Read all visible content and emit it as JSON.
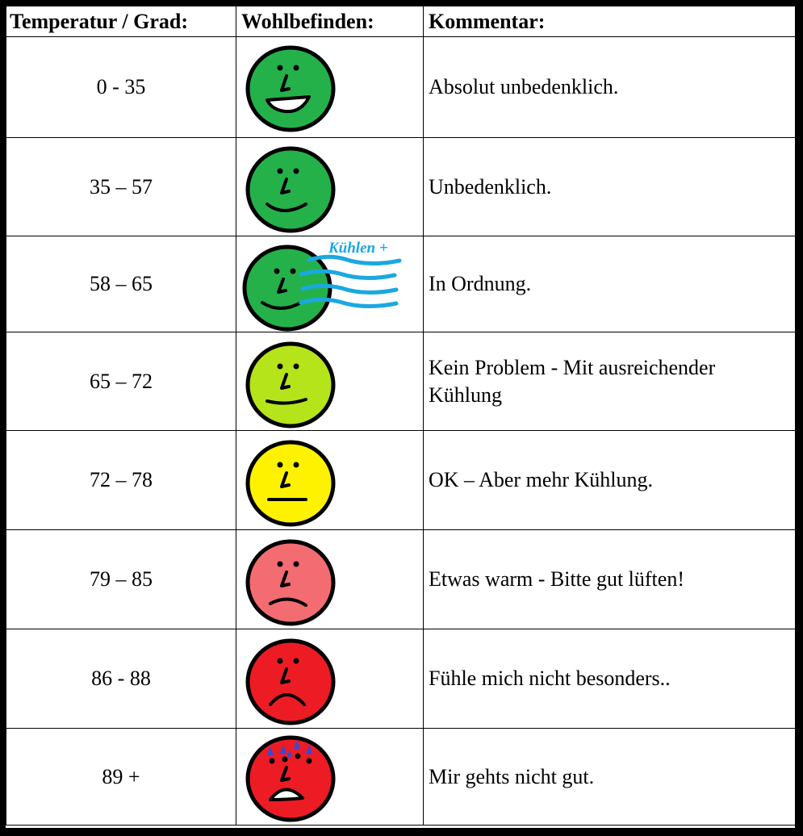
{
  "table": {
    "headers": {
      "temperature": "Temperatur / Grad:",
      "wellbeing": "Wohlbefinden:",
      "comment": "Kommentar:"
    },
    "cooling_label": "Kühlen +",
    "colors": {
      "green": "#25B14A",
      "lime": "#B5E41B",
      "yellow": "#FFF200",
      "pink": "#F26C71",
      "red": "#ED1C24",
      "cool_lines": "#1AA8E0",
      "drops": "#3F48CC"
    },
    "rows": [
      {
        "range": "0 - 35",
        "mood": "very-happy",
        "face_color": "#25B14A",
        "comment": "Absolut unbedenklich."
      },
      {
        "range": "35 – 57",
        "mood": "happy",
        "face_color": "#25B14A",
        "comment": "Unbedenklich."
      },
      {
        "range": "58 – 65",
        "mood": "happy-cooled",
        "face_color": "#25B14A",
        "comment": "In Ordnung."
      },
      {
        "range": "65 – 72",
        "mood": "slightly-happy",
        "face_color": "#B5E41B",
        "comment": "Kein Problem - Mit ausreichender Kühlung"
      },
      {
        "range": "72 – 78",
        "mood": "neutral",
        "face_color": "#FFF200",
        "comment": "OK – Aber mehr Kühlung."
      },
      {
        "range": "79 – 85",
        "mood": "slightly-sad",
        "face_color": "#F26C71",
        "comment": "Etwas warm - Bitte gut lüften!"
      },
      {
        "range": "86 - 88",
        "mood": "sad",
        "face_color": "#ED1C24",
        "comment": "Fühle mich nicht besonders.."
      },
      {
        "range": "89 +",
        "mood": "sweating-sick",
        "face_color": "#ED1C24",
        "comment": "Mir gehts nicht gut."
      }
    ]
  }
}
